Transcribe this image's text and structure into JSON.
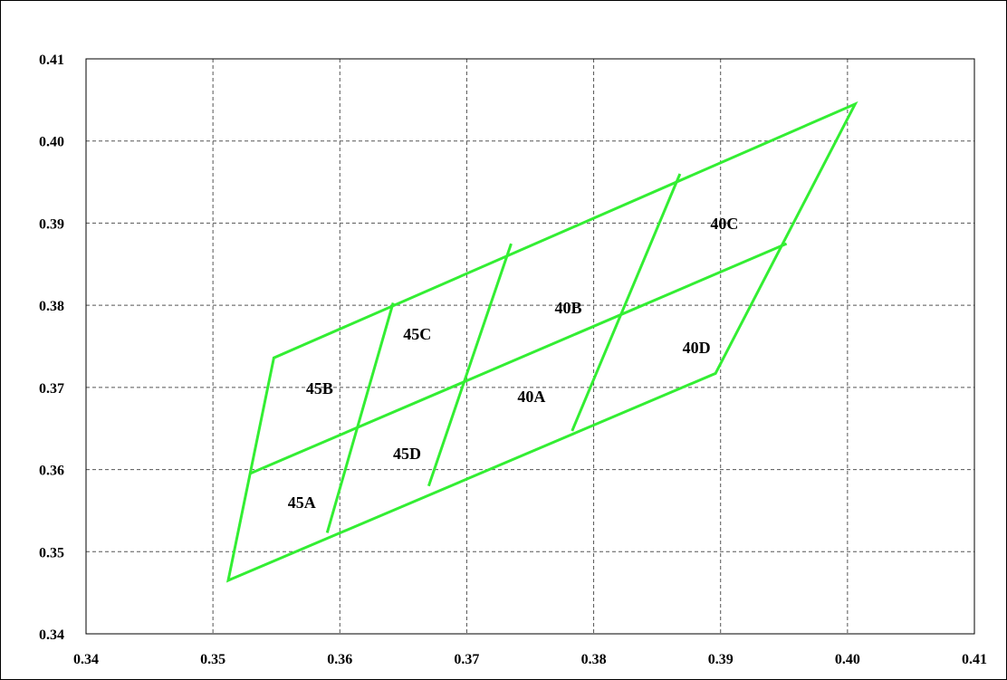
{
  "chart_data": {
    "type": "diagram",
    "description": "",
    "xlim": [
      0.34,
      0.41
    ],
    "ylim": [
      0.34,
      0.41
    ],
    "x_ticks": [
      0.34,
      0.35,
      0.36,
      0.37,
      0.38,
      0.39,
      0.4,
      0.41
    ],
    "y_ticks": [
      0.34,
      0.35,
      0.36,
      0.37,
      0.38,
      0.39,
      0.4,
      0.41
    ],
    "x_tick_labels": [
      "0.34",
      "0.35",
      "0.36",
      "0.37",
      "0.38",
      "0.39",
      "0.40",
      "0.41"
    ],
    "y_tick_labels": [
      "0.34",
      "0.35",
      "0.36",
      "0.37",
      "0.38",
      "0.39",
      "0.40",
      "0.41"
    ],
    "grid": true,
    "line_color": "#33ee33",
    "grid_color": "#555555",
    "outline": [
      [
        0.3512,
        0.3465
      ],
      [
        0.3548,
        0.3736
      ],
      [
        0.4006,
        0.4045
      ],
      [
        0.3896,
        0.3717
      ]
    ],
    "lines": [
      {
        "from": [
          0.3529,
          0.3595
        ],
        "to": [
          0.3952,
          0.3875
        ]
      },
      {
        "from": [
          0.359,
          0.3523
        ],
        "to": [
          0.3642,
          0.3803
        ]
      },
      {
        "from": [
          0.367,
          0.358
        ],
        "to": [
          0.3735,
          0.3875
        ]
      },
      {
        "from": [
          0.3783,
          0.3647
        ],
        "to": [
          0.3868,
          0.396
        ]
      }
    ],
    "regions": [
      {
        "label": "45A",
        "x": 0.357,
        "y": 0.3553
      },
      {
        "label": "45B",
        "x": 0.3584,
        "y": 0.3692
      },
      {
        "label": "45C",
        "x": 0.3661,
        "y": 0.3758
      },
      {
        "label": "45D",
        "x": 0.3653,
        "y": 0.3613
      },
      {
        "label": "40A",
        "x": 0.3751,
        "y": 0.3682
      },
      {
        "label": "40B",
        "x": 0.378,
        "y": 0.379
      },
      {
        "label": "40C",
        "x": 0.3903,
        "y": 0.3893
      },
      {
        "label": "40D",
        "x": 0.3881,
        "y": 0.3742
      }
    ]
  }
}
